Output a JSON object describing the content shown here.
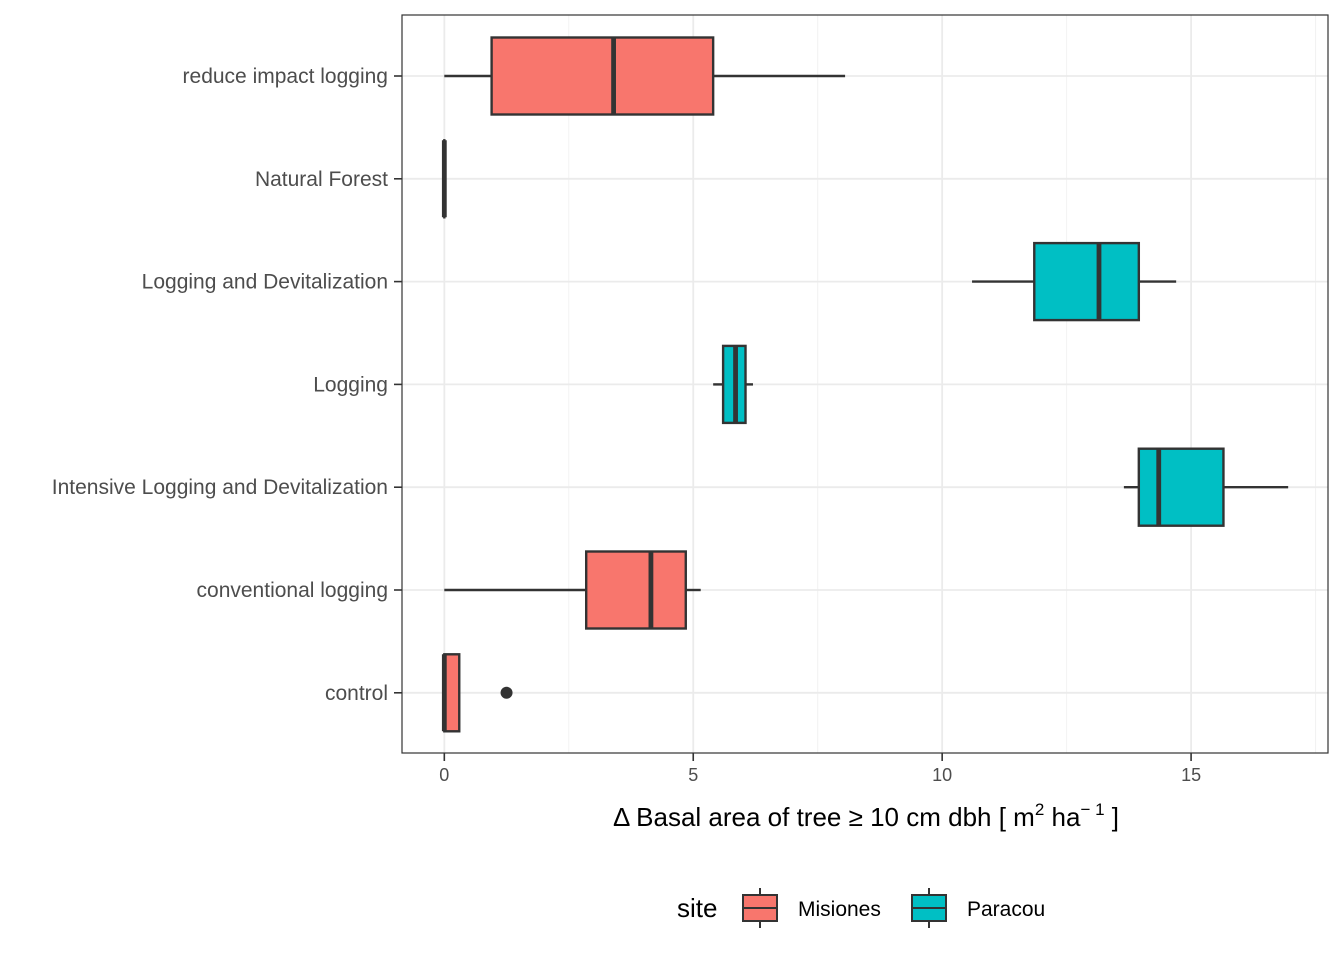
{
  "chart_data": {
    "type": "boxplot",
    "orientation": "horizontal",
    "xlabel": "Δ Basal area of tree ≥ 10 cm dbh [ m² ha⁻¹ ]",
    "xlabel_parts": {
      "main": "Δ Basal area of tree  ≥ 10 cm dbh [ m",
      "sup1": "2",
      "mid": " ha",
      "sup2": "− 1",
      "end": " ]"
    },
    "ylabel": "",
    "xlim": [
      -0.85,
      17.75
    ],
    "xticks": [
      0,
      5,
      10,
      15
    ],
    "xtick_labels": [
      "0",
      "5",
      "10",
      "15"
    ],
    "grid": true,
    "legend": {
      "title": "site",
      "position": "bottom",
      "entries": [
        {
          "name": "Misiones",
          "color": "#F8766D"
        },
        {
          "name": "Paracou",
          "color": "#00BFC4"
        }
      ]
    },
    "categories": [
      "reduce impact logging",
      "Natural Forest",
      "Logging and Devitalization",
      "Logging",
      "Intensive Logging and Devitalization",
      "conventional logging",
      "control"
    ],
    "boxes": [
      {
        "category": "reduce impact logging",
        "site": "Misiones",
        "whisker_low": 0.0,
        "q1": 0.95,
        "median": 3.4,
        "q3": 5.4,
        "whisker_high": 8.05,
        "outliers": []
      },
      {
        "category": "Natural Forest",
        "site": "Misiones",
        "whisker_low": 0.0,
        "q1": 0.0,
        "median": 0.0,
        "q3": 0.0,
        "whisker_high": 0.0,
        "outliers": []
      },
      {
        "category": "Logging and Devitalization",
        "site": "Paracou",
        "whisker_low": 10.6,
        "q1": 11.85,
        "median": 13.15,
        "q3": 13.95,
        "whisker_high": 14.7,
        "outliers": []
      },
      {
        "category": "Logging",
        "site": "Paracou",
        "whisker_low": 5.4,
        "q1": 5.6,
        "median": 5.85,
        "q3": 6.05,
        "whisker_high": 6.2,
        "outliers": []
      },
      {
        "category": "Intensive Logging and Devitalization",
        "site": "Paracou",
        "whisker_low": 13.65,
        "q1": 13.95,
        "median": 14.35,
        "q3": 15.65,
        "whisker_high": 16.95,
        "outliers": []
      },
      {
        "category": "conventional logging",
        "site": "Misiones",
        "whisker_low": 0.0,
        "q1": 2.85,
        "median": 4.15,
        "q3": 4.85,
        "whisker_high": 5.15,
        "outliers": []
      },
      {
        "category": "control",
        "site": "Misiones",
        "whisker_low": 0.0,
        "q1": 0.0,
        "median": 0.0,
        "q3": 0.3,
        "whisker_high": 0.3,
        "outliers": [
          1.25
        ]
      }
    ]
  }
}
